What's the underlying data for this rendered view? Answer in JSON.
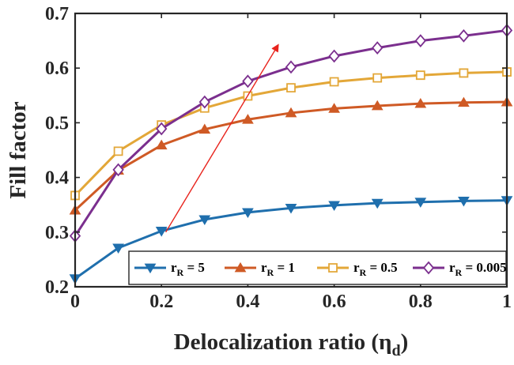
{
  "chart_data": {
    "type": "line",
    "xlabel_main": "Delocalization ratio (η",
    "xlabel_sub": "d",
    "xlabel_close": ")",
    "ylabel": "Fill factor",
    "xlim": [
      0,
      1
    ],
    "ylim": [
      0.2,
      0.7
    ],
    "xticks": [
      0,
      0.2,
      0.4,
      0.6,
      0.8,
      1
    ],
    "xtick_labels": [
      "0",
      "0.2",
      "0.4",
      "0.6",
      "0.8",
      "1"
    ],
    "yticks": [
      0.2,
      0.3,
      0.4,
      0.5,
      0.6,
      0.7
    ],
    "ytick_labels": [
      "0.2",
      "0.3",
      "0.4",
      "0.5",
      "0.6",
      "0.7"
    ],
    "grid": false,
    "legend_position": "bottom",
    "x": [
      0,
      0.1,
      0.2,
      0.3,
      0.4,
      0.5,
      0.6,
      0.7,
      0.8,
      0.9,
      1.0
    ],
    "series": [
      {
        "name": "rR = 5",
        "label_main": "r",
        "label_sub": "R",
        "label_rest": " = 5",
        "marker": "triangle-down",
        "color": "#1f6fad",
        "values": [
          0.215,
          0.271,
          0.302,
          0.323,
          0.336,
          0.344,
          0.349,
          0.353,
          0.355,
          0.357,
          0.358
        ]
      },
      {
        "name": "rR = 1",
        "label_main": "r",
        "label_sub": "R",
        "label_rest": " = 1",
        "marker": "triangle-up",
        "color": "#cf5a25",
        "values": [
          0.34,
          0.413,
          0.459,
          0.488,
          0.506,
          0.518,
          0.526,
          0.531,
          0.535,
          0.537,
          0.538
        ]
      },
      {
        "name": "rR = 0.5",
        "label_main": "r",
        "label_sub": "R",
        "label_rest": " = 0.5",
        "marker": "square",
        "color": "#e3a738",
        "values": [
          0.367,
          0.448,
          0.496,
          0.527,
          0.549,
          0.564,
          0.575,
          0.582,
          0.587,
          0.591,
          0.593
        ]
      },
      {
        "name": "rR = 0.005",
        "label_main": "r",
        "label_sub": "R",
        "label_rest": " = 0.005",
        "marker": "diamond",
        "color": "#7b2f8e",
        "values": [
          0.293,
          0.414,
          0.489,
          0.538,
          0.576,
          0.602,
          0.622,
          0.637,
          0.65,
          0.659,
          0.669
        ]
      }
    ],
    "annotation_arrow": {
      "color": "#e8241d",
      "from": [
        0.21,
        0.3
      ],
      "to": [
        0.47,
        0.642
      ]
    }
  }
}
